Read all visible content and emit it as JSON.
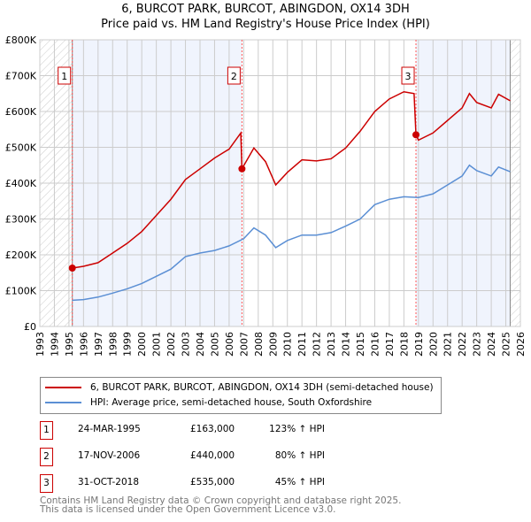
{
  "title": "6, BURCOT PARK, BURCOT, ABINGDON, OX14 3DH",
  "subtitle": "Price paid vs. HM Land Registry's House Price Index (HPI)",
  "chart_data": {
    "type": "line",
    "title": "6, BURCOT PARK, BURCOT, ABINGDON, OX14 3DH",
    "subtitle": "Price paid vs. HM Land Registry's House Price Index (HPI)",
    "xlim": [
      1993,
      2026
    ],
    "ylim": [
      0,
      800000
    ],
    "x_ticks": [
      "1993",
      "1994",
      "1995",
      "1996",
      "1997",
      "1998",
      "1999",
      "2000",
      "2001",
      "2002",
      "2003",
      "2004",
      "2005",
      "2006",
      "2007",
      "2008",
      "2009",
      "2010",
      "2011",
      "2012",
      "2013",
      "2014",
      "2015",
      "2016",
      "2017",
      "2018",
      "2019",
      "2020",
      "2021",
      "2022",
      "2023",
      "2024",
      "2025",
      "2026"
    ],
    "y_ticks": [
      {
        "v": 0,
        "label": "£0"
      },
      {
        "v": 100000,
        "label": "£100K"
      },
      {
        "v": 200000,
        "label": "£200K"
      },
      {
        "v": 300000,
        "label": "£300K"
      },
      {
        "v": 400000,
        "label": "£400K"
      },
      {
        "v": 500000,
        "label": "£500K"
      },
      {
        "v": 600000,
        "label": "£600K"
      },
      {
        "v": 700000,
        "label": "£700K"
      },
      {
        "v": 800000,
        "label": "£800K"
      }
    ],
    "grid": true,
    "series": [
      {
        "name": "6, BURCOT PARK, BURCOT, ABINGDON, OX14 3DH (semi-detached house)",
        "color": "#cc0000",
        "x": [
          1995.23,
          1996,
          1997,
          1998,
          1999,
          2000,
          2001,
          2002,
          2003,
          2004,
          2005,
          2006,
          2006.8,
          2006.88,
          2007.7,
          2008.5,
          2009.2,
          2010,
          2011,
          2012,
          2013,
          2014,
          2015,
          2016,
          2017,
          2018,
          2018.7,
          2018.83,
          2019,
          2020,
          2021,
          2022,
          2022.5,
          2023,
          2024,
          2024.5,
          2025.3
        ],
        "y": [
          163000,
          168000,
          178000,
          205000,
          232000,
          265000,
          310000,
          355000,
          410000,
          440000,
          470000,
          495000,
          540000,
          440000,
          498000,
          460000,
          395000,
          430000,
          465000,
          462000,
          468000,
          498000,
          545000,
          600000,
          635000,
          655000,
          650000,
          535000,
          520000,
          540000,
          575000,
          610000,
          650000,
          625000,
          610000,
          648000,
          630000
        ]
      },
      {
        "name": "HPI: Average price, semi-detached house, South Oxfordshire",
        "color": "#5b8fd4",
        "x": [
          1995.23,
          1996,
          1997,
          1998,
          1999,
          2000,
          2001,
          2002,
          2003,
          2004,
          2005,
          2006,
          2007,
          2007.7,
          2008.5,
          2009.2,
          2010,
          2011,
          2012,
          2013,
          2014,
          2015,
          2016,
          2017,
          2018,
          2019,
          2020,
          2021,
          2022,
          2022.5,
          2023,
          2024,
          2024.5,
          2025.3
        ],
        "y": [
          73000,
          75000,
          82000,
          93000,
          105000,
          120000,
          140000,
          160000,
          195000,
          205000,
          212000,
          225000,
          245000,
          275000,
          255000,
          220000,
          240000,
          255000,
          255000,
          262000,
          280000,
          300000,
          340000,
          355000,
          362000,
          360000,
          370000,
          395000,
          420000,
          450000,
          435000,
          420000,
          445000,
          432000
        ]
      }
    ],
    "sales": [
      {
        "n": "1",
        "x": 1995.23,
        "y": 163000,
        "date": "24-MAR-1995",
        "price": "£163,000",
        "hpi": "123% ↑ HPI"
      },
      {
        "n": "2",
        "x": 2006.88,
        "y": 440000,
        "date": "17-NOV-2006",
        "price": "£440,000",
        "hpi": "80% ↑ HPI"
      },
      {
        "n": "3",
        "x": 2018.83,
        "y": 535000,
        "date": "31-OCT-2018",
        "price": "£535,000",
        "hpi": "45% ↑ HPI"
      }
    ],
    "data_range": [
      1995.23,
      2025.3
    ]
  },
  "legend": {
    "red": "6, BURCOT PARK, BURCOT, ABINGDON, OX14 3DH (semi-detached house)",
    "blue": "HPI: Average price, semi-detached house, South Oxfordshire"
  },
  "footer": {
    "line1": "Contains HM Land Registry data © Crown copyright and database right 2025.",
    "line2": "This data is licensed under the Open Government Licence v3.0."
  }
}
